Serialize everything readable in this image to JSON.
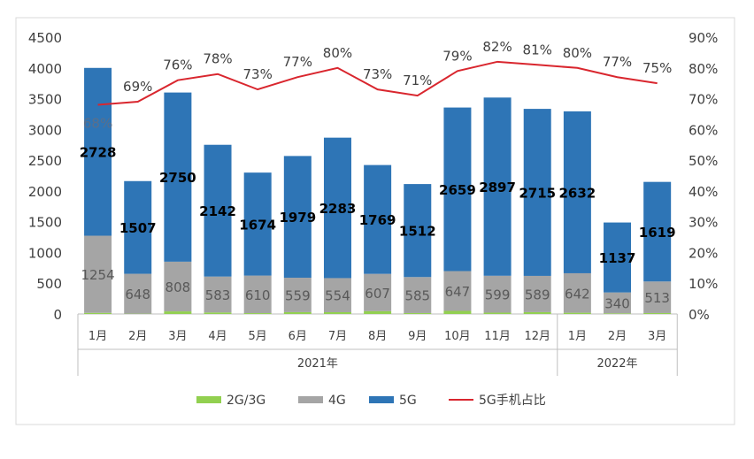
{
  "chart_data": {
    "type": "bar",
    "stacked": true,
    "categories": [
      "1月",
      "2月",
      "3月",
      "4月",
      "5月",
      "6月",
      "7月",
      "8月",
      "9月",
      "10月",
      "11月",
      "12月",
      "1月",
      "2月",
      "3月"
    ],
    "groups": [
      {
        "label": "2021年",
        "count": 12
      },
      {
        "label": "2022年",
        "count": 3
      }
    ],
    "series": [
      {
        "name": "2G/3G",
        "color": "#92d050",
        "values": [
          18,
          5,
          42,
          25,
          14,
          30,
          29,
          45,
          15,
          50,
          22,
          30,
          20,
          10,
          15
        ]
      },
      {
        "name": "4G",
        "color": "#a5a5a5",
        "values": [
          1254,
          648,
          808,
          583,
          610,
          559,
          554,
          607,
          585,
          647,
          599,
          589,
          642,
          340,
          513
        ]
      },
      {
        "name": "5G",
        "color": "#2e75b6",
        "values": [
          2728,
          1507,
          2750,
          2142,
          1674,
          1979,
          2283,
          1769,
          1512,
          2659,
          2897,
          2715,
          2632,
          1137,
          1619
        ]
      }
    ],
    "line": {
      "name": "5G手机占比",
      "color": "#d9262e",
      "axis": "right",
      "values": [
        68,
        69,
        76,
        78,
        73,
        77,
        80,
        73,
        71,
        79,
        82,
        81,
        80,
        77,
        75
      ]
    },
    "yleft": {
      "min": 0,
      "max": 4500,
      "step": 500
    },
    "yright": {
      "min": 0,
      "max": 90,
      "step": 10,
      "unit": "%"
    },
    "legend": "bottom",
    "grid": false
  }
}
